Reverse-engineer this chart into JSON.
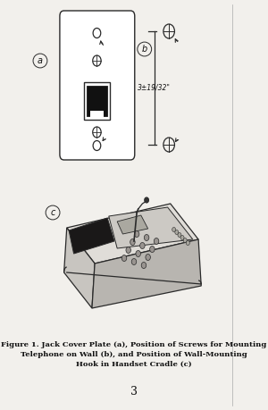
{
  "page_bg": "#f2f0ec",
  "white": "#ffffff",
  "line_color": "#2a2a2a",
  "text_color": "#111111",
  "title_line1": "Figure 1. Jack Cover Plate (a), Position of Screws for Mounting",
  "title_line2": "Telephone on Wall (b), and Position of Wall-Mounting",
  "title_line3": "Hook in Handset Cradle (c)",
  "page_number": "3",
  "label_a": "a",
  "label_b": "b",
  "label_c": "c",
  "dimension_text": "3±19/32\"",
  "fig_width": 3.0,
  "fig_height": 4.59,
  "dpi": 100
}
